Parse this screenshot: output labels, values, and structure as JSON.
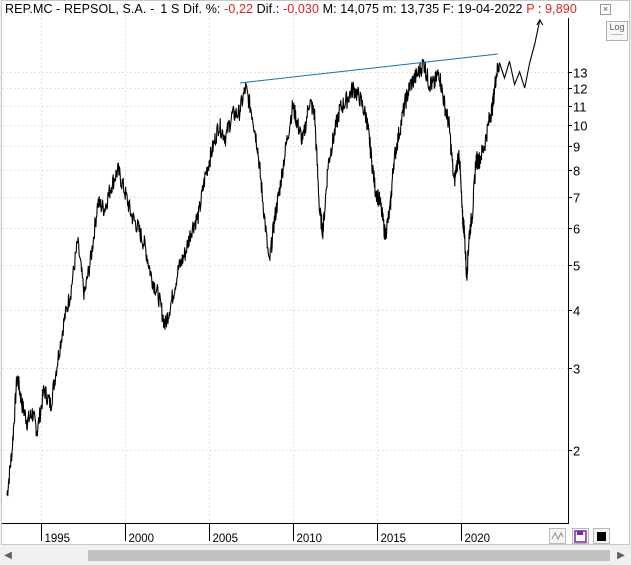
{
  "header": {
    "symbol": "REP.MC - REPSOL,  S.A. -",
    "period": "1 S",
    "change_pct_label": "Dif. %:",
    "change_pct_value": "-0,22",
    "change_label": "Dif.:",
    "change_value": "-0,030",
    "high_label": "M:",
    "high_value": "14,075",
    "low_label": "m:",
    "low_value": "13,735",
    "date_label": "F:",
    "date_value": "19-04-2022",
    "price_label": "P",
    "price_value": "9,890",
    "close_glyph": "×"
  },
  "controls": {
    "log_label": "Log",
    "scroll_left_glyph": "◀",
    "scroll_right_glyph": "▶"
  },
  "colors": {
    "price_line": "#000000",
    "trendline": "#1a6fb0",
    "negative": "#e02020",
    "grid": "#e4e4e4",
    "tick_text": "#000000"
  },
  "chart_data": {
    "type": "line",
    "title": "REP.MC - REPSOL, S.A.",
    "xlabel": "",
    "ylabel": "",
    "log_scale": true,
    "xlim": [
      1992.7,
      2026.2
    ],
    "ylim": [
      1.4,
      16.8
    ],
    "x_ticks": [
      1995,
      2000,
      2005,
      2010,
      2015,
      2020
    ],
    "y_ticks": [
      2,
      3,
      4,
      5,
      6,
      7,
      8,
      9,
      10,
      11,
      12,
      13
    ],
    "grid": true,
    "series": [
      {
        "name": "",
        "x": [
          1993.0,
          1993.3,
          1993.6,
          1993.9,
          1994.2,
          1994.5,
          1994.8,
          1995.2,
          1995.6,
          1996.0,
          1996.4,
          1996.8,
          1997.2,
          1997.6,
          1998.0,
          1998.4,
          1998.8,
          1999.2,
          1999.6,
          2000.0,
          2000.4,
          2000.8,
          2001.2,
          2001.6,
          2002.0,
          2002.4,
          2002.8,
          2003.2,
          2003.6,
          2004.0,
          2004.4,
          2004.8,
          2005.2,
          2005.6,
          2006.0,
          2006.4,
          2006.8,
          2007.2,
          2007.6,
          2007.9,
          2008.2,
          2008.6,
          2008.9,
          2009.2,
          2009.6,
          2010.0,
          2010.3,
          2010.6,
          2011.0,
          2011.3,
          2011.6,
          2011.8,
          2012.1,
          2012.4,
          2012.8,
          2013.2,
          2013.6,
          2014.0,
          2014.4,
          2014.6,
          2014.9,
          2015.2,
          2015.5,
          2015.8,
          2016.0,
          2016.3,
          2016.7,
          2017.0,
          2017.4,
          2017.8,
          2018.1,
          2018.4,
          2018.7,
          2019.0,
          2019.3,
          2019.6,
          2019.9,
          2020.1,
          2020.2,
          2020.35,
          2020.5,
          2020.7,
          2020.9,
          2021.1,
          2021.4,
          2021.7,
          2021.9,
          2022.1,
          2022.3
        ],
        "values": [
          1.6,
          2.0,
          2.9,
          2.5,
          2.3,
          2.4,
          2.2,
          2.7,
          2.5,
          3.1,
          3.8,
          4.4,
          5.6,
          4.3,
          5.2,
          6.8,
          6.6,
          7.4,
          8.0,
          7.2,
          6.4,
          6.0,
          5.5,
          4.7,
          4.3,
          3.7,
          4.2,
          4.9,
          5.3,
          6.0,
          6.4,
          7.8,
          8.8,
          10.0,
          9.4,
          10.5,
          10.6,
          12.0,
          10.5,
          9.0,
          7.0,
          5.0,
          6.2,
          7.2,
          9.0,
          11.0,
          10.0,
          9.2,
          11.3,
          10.5,
          6.5,
          5.9,
          8.2,
          9.3,
          10.8,
          11.3,
          12.0,
          11.4,
          10.3,
          9.0,
          7.3,
          6.8,
          5.8,
          6.6,
          8.3,
          9.5,
          11.2,
          12.2,
          12.8,
          13.6,
          12.3,
          12.2,
          13.0,
          11.2,
          10.0,
          7.5,
          8.8,
          6.3,
          6.0,
          4.7,
          5.8,
          6.5,
          8.4,
          8.4,
          9.0,
          10.3,
          11.0,
          12.8,
          13.6
        ]
      }
    ],
    "projection": {
      "x": [
        2022.3,
        2022.6,
        2022.9,
        2023.2,
        2023.5,
        2023.8,
        2024.1,
        2024.4,
        2024.7
      ],
      "values": [
        13.6,
        12.6,
        13.7,
        12.2,
        13.0,
        12.0,
        13.6,
        14.9,
        16.8
      ]
    },
    "trendline": {
      "x": [
        2006.85,
        2022.2
      ],
      "values": [
        12.3,
        14.2
      ]
    }
  }
}
